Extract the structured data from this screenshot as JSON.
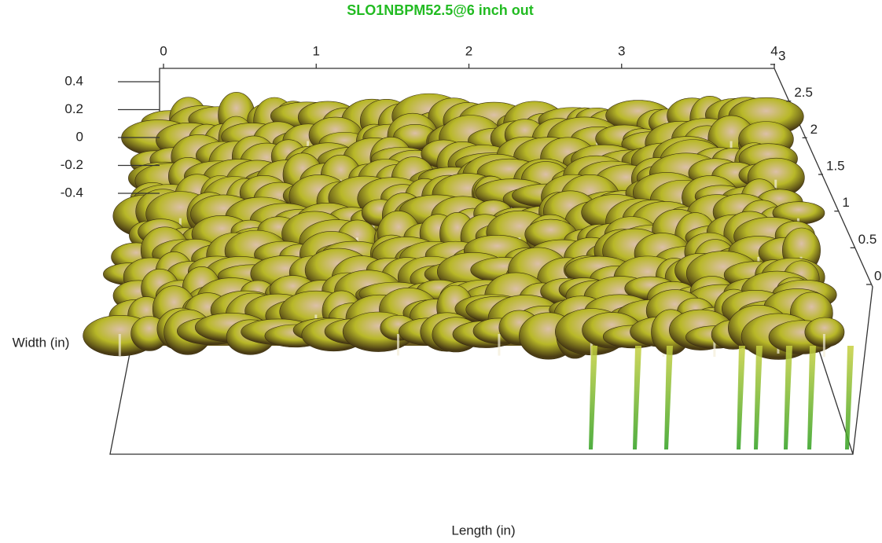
{
  "chart_data": {
    "type": "surface",
    "title": "SLO1NBPM52.5@6 inch out",
    "xlabel": "Length (in)",
    "ylabel": "Width (in)",
    "xlim": [
      0,
      4
    ],
    "xticks": [
      0,
      1,
      2,
      3,
      4
    ],
    "ylim": [
      0,
      3
    ],
    "yticks": [
      0,
      0.5,
      1,
      1.5,
      2,
      2.5,
      3
    ],
    "zlim": [
      -0.4,
      0.4
    ],
    "zticks": [
      0.4,
      0.2,
      0,
      -0.2,
      -0.4
    ],
    "title_color": "#22bb22",
    "colormap": [
      "#4a3c14",
      "#b8b828",
      "#dcc0a8"
    ]
  }
}
